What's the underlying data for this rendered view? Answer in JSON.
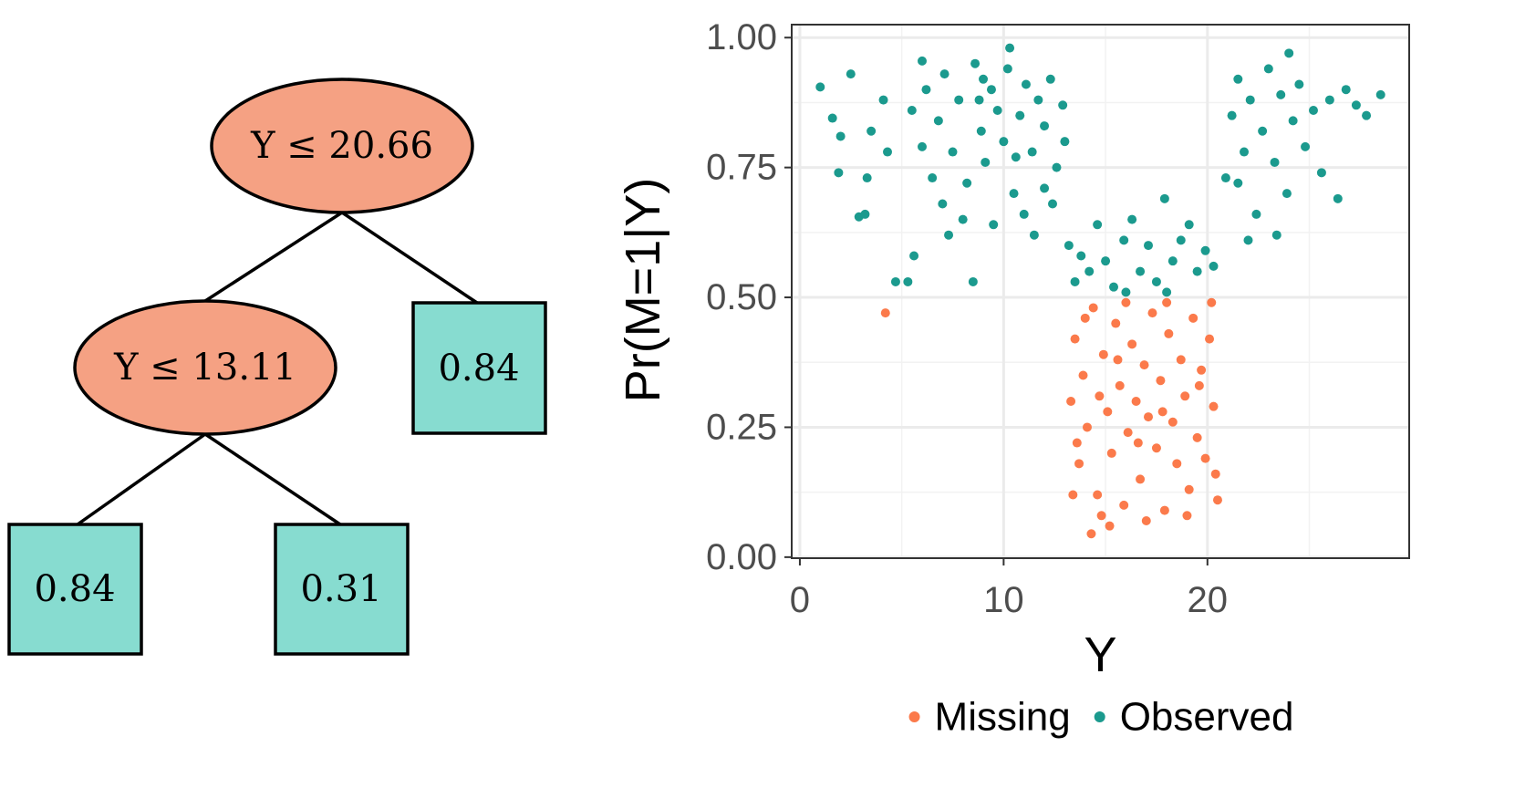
{
  "diagram": {
    "nodes": [
      {
        "label": "Y ≤ 20.66"
      },
      {
        "label": "Y ≤ 13.11"
      }
    ],
    "leaves": [
      "0.84",
      "0.84",
      "0.31"
    ]
  },
  "chart_data": {
    "type": "scatter",
    "xlabel": "Y",
    "ylabel": "Pr(M=1|Y)",
    "xlim": [
      -0.4,
      29.9
    ],
    "ylim": [
      -0.002,
      1.025
    ],
    "xticks": [
      0,
      10,
      20
    ],
    "yticks": [
      {
        "value": 0,
        "label": "0.00"
      },
      {
        "value": 0.25,
        "label": "0.25"
      },
      {
        "value": 0.5,
        "label": "0.50"
      },
      {
        "value": 0.75,
        "label": "0.75"
      },
      {
        "value": 1,
        "label": "1.00"
      }
    ],
    "grid": true,
    "legend": "bottom",
    "series": [
      {
        "name": "Missing",
        "color": "#fb7a4b",
        "x": [
          4.2,
          14.3,
          14.8,
          13.3,
          13.5,
          13.7,
          13.9,
          14.1,
          14.4,
          14.6,
          14.9,
          15.1,
          15.3,
          15.5,
          15.7,
          15.9,
          16.1,
          16.3,
          16.5,
          16.7,
          16.9,
          17.1,
          17.3,
          17.5,
          17.7,
          17.9,
          18.1,
          18.3,
          18.5,
          18.7,
          18.9,
          19.1,
          19.3,
          19.5,
          19.7,
          19.9,
          20.1,
          20.3,
          20.5,
          13.4,
          14.0,
          15.2,
          16.0,
          17.0,
          18.0,
          19.0,
          20.2,
          13.6,
          16.6,
          19.6,
          15.6,
          17.8,
          14.7,
          20.4
        ],
        "values": [
          0.47,
          0.045,
          0.08,
          0.3,
          0.42,
          0.18,
          0.35,
          0.25,
          0.48,
          0.12,
          0.39,
          0.28,
          0.2,
          0.45,
          0.33,
          0.1,
          0.24,
          0.41,
          0.3,
          0.15,
          0.37,
          0.27,
          0.47,
          0.21,
          0.34,
          0.09,
          0.43,
          0.26,
          0.18,
          0.38,
          0.31,
          0.13,
          0.46,
          0.23,
          0.36,
          0.19,
          0.42,
          0.29,
          0.11,
          0.12,
          0.46,
          0.06,
          0.49,
          0.07,
          0.49,
          0.08,
          0.49,
          0.22,
          0.22,
          0.33,
          0.38,
          0.28,
          0.31,
          0.16
        ]
      },
      {
        "name": "Observed",
        "color": "#1b9a8e",
        "x": [
          1,
          1.6,
          2,
          1.9,
          2.5,
          2.9,
          3.2,
          3.5,
          3.3,
          4.1,
          4.3,
          4.7,
          5.3,
          5.6,
          8.5,
          6.0,
          5.5,
          6.2,
          6.8,
          7.1,
          7.5,
          7.8,
          8.2,
          8.6,
          8.9,
          9.1,
          9.4,
          9.7,
          10.0,
          10.2,
          10.5,
          10.8,
          11.1,
          11.4,
          11.7,
          12.0,
          12.3,
          12.6,
          12.9,
          6.5,
          7.0,
          8.0,
          9.5,
          11.0,
          12.0,
          13.0,
          10.3,
          6.0,
          9.0,
          11.5,
          7.3,
          8.8,
          10.6,
          12.4,
          13.2,
          13.8,
          14.2,
          14.6,
          15.0,
          15.4,
          15.9,
          16.3,
          16.7,
          17.1,
          17.5,
          17.9,
          18.3,
          18.7,
          19.1,
          19.5,
          19.9,
          20.3,
          13.5,
          16.0,
          18.0,
          20.9,
          21.2,
          21.5,
          21.8,
          22.1,
          22.4,
          22.7,
          23.0,
          23.3,
          23.6,
          23.9,
          24.2,
          24.5,
          24.8,
          25.2,
          25.6,
          26.0,
          26.4,
          26.8,
          27.3,
          27.8,
          28.5,
          23.4,
          22.0,
          24.0,
          21.5
        ],
        "values": [
          0.905,
          0.845,
          0.81,
          0.74,
          0.93,
          0.655,
          0.66,
          0.82,
          0.73,
          0.88,
          0.78,
          0.53,
          0.53,
          0.58,
          0.53,
          0.955,
          0.86,
          0.9,
          0.84,
          0.93,
          0.78,
          0.88,
          0.72,
          0.95,
          0.82,
          0.76,
          0.9,
          0.86,
          0.8,
          0.94,
          0.7,
          0.85,
          0.91,
          0.78,
          0.88,
          0.83,
          0.92,
          0.75,
          0.87,
          0.73,
          0.68,
          0.65,
          0.64,
          0.66,
          0.71,
          0.8,
          0.98,
          0.79,
          0.92,
          0.62,
          0.62,
          0.88,
          0.77,
          0.68,
          0.6,
          0.58,
          0.55,
          0.64,
          0.57,
          0.52,
          0.61,
          0.65,
          0.55,
          0.6,
          0.53,
          0.69,
          0.57,
          0.61,
          0.64,
          0.55,
          0.59,
          0.56,
          0.53,
          0.51,
          0.51,
          0.73,
          0.85,
          0.92,
          0.78,
          0.88,
          0.66,
          0.82,
          0.94,
          0.76,
          0.89,
          0.7,
          0.84,
          0.91,
          0.79,
          0.86,
          0.74,
          0.88,
          0.69,
          0.9,
          0.87,
          0.85,
          0.89,
          0.62,
          0.61,
          0.97,
          0.72
        ]
      }
    ]
  }
}
